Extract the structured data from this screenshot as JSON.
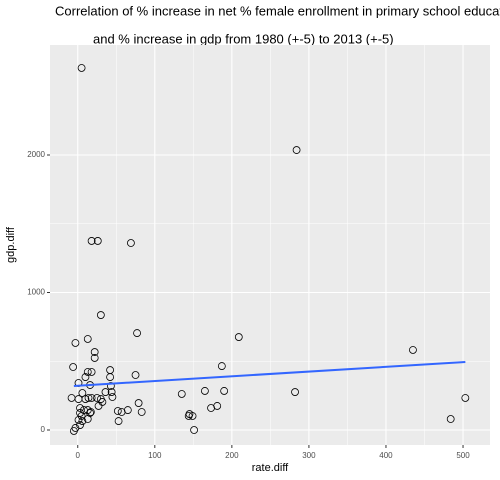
{
  "chart_data": {
    "type": "scatter",
    "title": "Correlation of % increase in net % female enrollment in primary school education",
    "subtitle": "and % increase in gdp from 1980 (+-5) to 2013 (+-5)",
    "x_label": "rate.diff",
    "y_label": "gdp.diff",
    "xlim": [
      -36,
      535
    ],
    "ylim": [
      -109,
      2800
    ],
    "xticks": [
      0,
      100,
      200,
      300,
      400,
      500
    ],
    "yticks": [
      0,
      1000,
      2000
    ],
    "grid": true,
    "series": [
      {
        "color": "#000000",
        "x": [
          5,
          284,
          18,
          26,
          69,
          30,
          13,
          77,
          209,
          435,
          22,
          22,
          -6,
          -3,
          42,
          13,
          18,
          10,
          187,
          75,
          42,
          1,
          16,
          43,
          44,
          6,
          36,
          165,
          190,
          282,
          135,
          -8,
          1,
          10,
          14,
          18,
          25,
          30,
          32,
          45,
          79,
          27,
          181,
          173,
          503,
          484,
          65,
          57,
          52,
          83,
          3,
          3,
          8,
          17,
          16,
          5,
          1,
          6,
          13,
          3,
          -3,
          -5,
          145,
          149,
          144,
          53,
          151,
          13
        ],
        "values": [
          2633,
          2036,
          1375,
          1375,
          1360,
          836,
          662,
          705,
          676,
          582,
          567,
          524,
          458,
          633,
          436,
          422,
          422,
          385,
          465,
          400,
          385,
          342,
          327,
          320,
          276,
          269,
          276,
          284,
          284,
          276,
          262,
          233,
          225,
          225,
          233,
          233,
          233,
          225,
          204,
          240,
          196,
          175,
          175,
          160,
          233,
          80,
          145,
          131,
          138,
          131,
          160,
          124,
          145,
          131,
          124,
          102,
          73,
          65,
          80,
          36,
          15,
          -7,
          116,
          102,
          102,
          65,
          0,
          145
        ]
      }
    ],
    "trend": {
      "color": "#3366ff",
      "x": [
        -5,
        503
      ],
      "values": [
        320,
        495
      ]
    }
  }
}
